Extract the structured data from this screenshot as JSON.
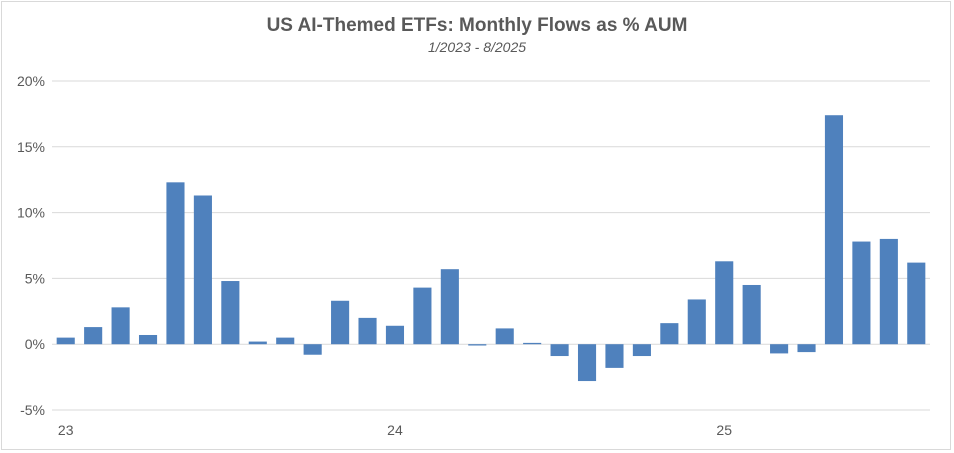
{
  "chart_data": {
    "type": "bar",
    "title": "US AI-Themed ETFs: Monthly Flows as % AUM",
    "subtitle": "1/2023 - 8/2025",
    "xlabel": "",
    "ylabel": "",
    "ylim": [
      -5,
      20
    ],
    "yticks": [
      -5,
      0,
      5,
      10,
      15,
      20
    ],
    "ytick_labels": [
      "-5%",
      "0%",
      "5%",
      "10%",
      "15%",
      "20%"
    ],
    "xtick_labels": [
      {
        "label": "23",
        "category": "2023-01"
      },
      {
        "label": "24",
        "category": "2024-01"
      },
      {
        "label": "25",
        "category": "2025-01"
      }
    ],
    "grid": true,
    "bar_color": "#4f81bd",
    "categories": [
      "2023-01",
      "2023-02",
      "2023-03",
      "2023-04",
      "2023-05",
      "2023-06",
      "2023-07",
      "2023-08",
      "2023-09",
      "2023-10",
      "2023-11",
      "2023-12",
      "2024-01",
      "2024-02",
      "2024-03",
      "2024-04",
      "2024-05",
      "2024-06",
      "2024-07",
      "2024-08",
      "2024-09",
      "2024-10",
      "2024-11",
      "2024-12",
      "2025-01",
      "2025-02",
      "2025-03",
      "2025-04",
      "2025-05",
      "2025-06",
      "2025-07",
      "2025-08"
    ],
    "values": [
      0.5,
      1.3,
      2.8,
      0.7,
      12.3,
      11.3,
      4.8,
      0.2,
      0.5,
      -0.8,
      3.3,
      2.0,
      1.4,
      4.3,
      5.7,
      -0.1,
      1.2,
      0.1,
      -0.9,
      -2.8,
      -1.8,
      -0.9,
      1.6,
      3.4,
      6.3,
      4.5,
      -0.7,
      -0.6,
      17.4,
      7.8,
      8.0,
      6.2
    ]
  }
}
